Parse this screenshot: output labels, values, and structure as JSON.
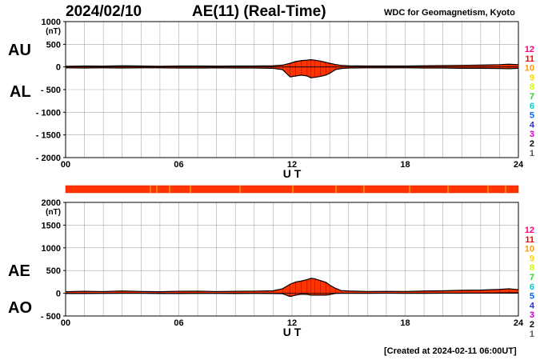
{
  "header": {
    "date": "2024/02/10",
    "title": "AE(11) (Real-Time)",
    "source": "WDC for Geomagnetism, Kyoto"
  },
  "footer": {
    "created": "[Created at 2024-02-11 06:00UT]"
  },
  "colors": {
    "fill": "#ff3300",
    "outline": "#000000",
    "grid": "#aaaaaa",
    "status_bar": "#ff3300",
    "station_counts": [
      "#ff0080",
      "#ff0000",
      "#ff9900",
      "#ffd700",
      "#ccff00",
      "#33cc33",
      "#00cccc",
      "#0066ff",
      "#3333cc",
      "#cc00cc",
      "#000000",
      "#555555",
      "#999999"
    ]
  },
  "chart_data": [
    {
      "type": "area",
      "panel": "AU/AL",
      "labels_left": [
        "AU",
        "AL"
      ],
      "unit": "(nT)",
      "xlabel": "U T",
      "xticks": [
        "00",
        "06",
        "12",
        "18",
        "24"
      ],
      "xlim": [
        0,
        24
      ],
      "ylim": [
        -2000,
        1000
      ],
      "yticks": [
        1000,
        500,
        0,
        -500,
        -1000,
        -1500,
        -2000
      ],
      "ytick_labels": [
        "1000",
        "500",
        "0",
        "- 500",
        "- 1000",
        "- 1500",
        "- 2000"
      ],
      "grid": true,
      "series": [
        {
          "name": "AU",
          "x": [
            0,
            1,
            2,
            3,
            4,
            5,
            6,
            7,
            8,
            9,
            10,
            11,
            11.5,
            11.9,
            12.2,
            12.5,
            12.8,
            13.0,
            13.2,
            13.5,
            13.8,
            14.0,
            14.3,
            14.6,
            15,
            16,
            17,
            18,
            19,
            20,
            21,
            22,
            23,
            23.5,
            24
          ],
          "values": [
            15,
            20,
            18,
            25,
            20,
            15,
            20,
            22,
            18,
            20,
            22,
            25,
            40,
            80,
            120,
            140,
            150,
            160,
            150,
            130,
            100,
            80,
            55,
            35,
            25,
            20,
            22,
            20,
            25,
            30,
            35,
            40,
            50,
            60,
            50
          ]
        },
        {
          "name": "AL",
          "x": [
            0,
            1,
            2,
            3,
            4,
            5,
            6,
            7,
            8,
            9,
            10,
            11,
            11.5,
            11.9,
            12.2,
            12.5,
            12.8,
            13.0,
            13.2,
            13.5,
            13.8,
            14.0,
            14.3,
            14.6,
            15,
            16,
            17,
            18,
            19,
            20,
            21,
            22,
            23,
            23.5,
            24
          ],
          "values": [
            -20,
            -25,
            -20,
            -25,
            -20,
            -20,
            -25,
            -25,
            -20,
            -25,
            -25,
            -30,
            -60,
            -220,
            -200,
            -180,
            -200,
            -240,
            -230,
            -210,
            -180,
            -140,
            -60,
            -35,
            -25,
            -20,
            -20,
            -20,
            -25,
            -25,
            -30,
            -30,
            -35,
            -40,
            -30
          ]
        }
      ]
    },
    {
      "type": "area",
      "panel": "AE/AO",
      "labels_left": [
        "AE",
        "AO"
      ],
      "unit": "(nT)",
      "xlabel": "U T",
      "xticks": [
        "00",
        "06",
        "12",
        "18",
        "24"
      ],
      "xlim": [
        0,
        24
      ],
      "ylim": [
        -500,
        2000
      ],
      "yticks": [
        2000,
        1500,
        1000,
        500,
        0,
        -500
      ],
      "ytick_labels": [
        "2000",
        "1500",
        "1000",
        "500",
        "0",
        "- 500"
      ],
      "grid": true,
      "series": [
        {
          "name": "AE",
          "x": [
            0,
            1,
            2,
            3,
            4,
            5,
            6,
            7,
            8,
            9,
            10,
            11,
            11.5,
            11.9,
            12.2,
            12.5,
            12.8,
            13.0,
            13.2,
            13.5,
            13.8,
            14.0,
            14.3,
            14.6,
            15,
            16,
            17,
            18,
            19,
            20,
            21,
            22,
            23,
            23.5,
            24
          ],
          "values": [
            35,
            45,
            38,
            50,
            40,
            35,
            45,
            47,
            38,
            45,
            47,
            55,
            100,
            200,
            250,
            270,
            300,
            330,
            320,
            280,
            240,
            180,
            110,
            60,
            50,
            40,
            42,
            40,
            50,
            55,
            65,
            70,
            85,
            100,
            80
          ]
        },
        {
          "name": "AO",
          "x": [
            0,
            1,
            2,
            3,
            4,
            5,
            6,
            7,
            8,
            9,
            10,
            11,
            11.5,
            11.9,
            12.2,
            12.5,
            12.8,
            13.0,
            13.2,
            13.5,
            13.8,
            14.0,
            14.3,
            14.6,
            15,
            16,
            17,
            18,
            19,
            20,
            21,
            22,
            23,
            23.5,
            24
          ],
          "values": [
            -5,
            -5,
            -2,
            0,
            0,
            -5,
            -5,
            -3,
            -2,
            -5,
            -3,
            -5,
            -10,
            -70,
            -40,
            -20,
            -25,
            -40,
            -40,
            -40,
            -40,
            -30,
            -3,
            0,
            0,
            0,
            1,
            0,
            0,
            2,
            2,
            5,
            7,
            10,
            10
          ]
        }
      ]
    }
  ],
  "station_legend": [
    "12",
    "11",
    "10",
    "9",
    "8",
    "7",
    "6",
    "5",
    "4",
    "3",
    "2",
    "1"
  ]
}
